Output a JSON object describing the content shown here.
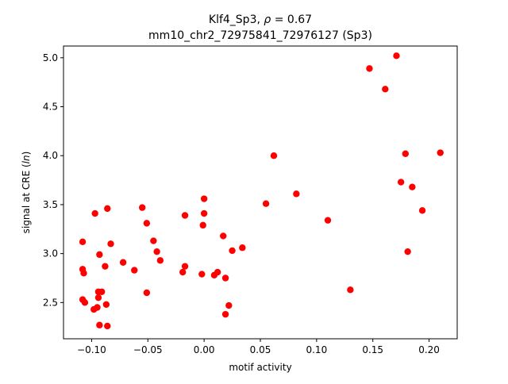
{
  "chart_data": {
    "type": "scatter",
    "title_line1": "Klf4_Sp3, ",
    "title_rho_symbol": "ρ",
    "title_rho_value": " = 0.67",
    "title_line2": "mm10_chr2_72975841_72976127 (Sp3)",
    "xlabel": "motif activity",
    "ylabel_prefix": "signal at CRE (",
    "ylabel_italic": "ln",
    "ylabel_suffix": ")",
    "xlim": [
      -0.125,
      0.225
    ],
    "ylim": [
      2.13,
      5.12
    ],
    "xticks": [
      -0.1,
      -0.05,
      0.0,
      0.05,
      0.1,
      0.15,
      0.2
    ],
    "xtick_labels": [
      "−0.10",
      "−0.05",
      "0.00",
      "0.05",
      "0.10",
      "0.15",
      "0.20"
    ],
    "yticks": [
      2.5,
      3.0,
      3.5,
      4.0,
      4.5,
      5.0
    ],
    "ytick_labels": [
      "2.5",
      "3.0",
      "3.5",
      "4.0",
      "4.5",
      "5.0"
    ],
    "grid": false,
    "marker_color": "#ff0000",
    "points": [
      {
        "x": -0.108,
        "y": 3.12
      },
      {
        "x": -0.108,
        "y": 2.84
      },
      {
        "x": -0.107,
        "y": 2.8
      },
      {
        "x": -0.108,
        "y": 2.53
      },
      {
        "x": -0.106,
        "y": 2.5
      },
      {
        "x": -0.097,
        "y": 3.41
      },
      {
        "x": -0.098,
        "y": 2.43
      },
      {
        "x": -0.095,
        "y": 2.45
      },
      {
        "x": -0.094,
        "y": 2.61
      },
      {
        "x": -0.094,
        "y": 2.55
      },
      {
        "x": -0.093,
        "y": 2.99
      },
      {
        "x": -0.093,
        "y": 2.27
      },
      {
        "x": -0.091,
        "y": 2.61
      },
      {
        "x": -0.088,
        "y": 2.87
      },
      {
        "x": -0.087,
        "y": 2.48
      },
      {
        "x": -0.086,
        "y": 3.46
      },
      {
        "x": -0.086,
        "y": 2.26
      },
      {
        "x": -0.083,
        "y": 3.1
      },
      {
        "x": -0.072,
        "y": 2.91
      },
      {
        "x": -0.062,
        "y": 2.83
      },
      {
        "x": -0.055,
        "y": 3.47
      },
      {
        "x": -0.051,
        "y": 3.31
      },
      {
        "x": -0.051,
        "y": 2.6
      },
      {
        "x": -0.045,
        "y": 3.13
      },
      {
        "x": -0.042,
        "y": 3.02
      },
      {
        "x": -0.039,
        "y": 2.93
      },
      {
        "x": -0.019,
        "y": 2.81
      },
      {
        "x": -0.017,
        "y": 3.39
      },
      {
        "x": -0.017,
        "y": 2.87
      },
      {
        "x": -0.002,
        "y": 2.79
      },
      {
        "x": 0.0,
        "y": 3.56
      },
      {
        "x": 0.0,
        "y": 3.41
      },
      {
        "x": -0.001,
        "y": 3.29
      },
      {
        "x": 0.009,
        "y": 2.78
      },
      {
        "x": 0.012,
        "y": 2.81
      },
      {
        "x": 0.017,
        "y": 3.18
      },
      {
        "x": 0.019,
        "y": 2.75
      },
      {
        "x": 0.019,
        "y": 2.38
      },
      {
        "x": 0.022,
        "y": 2.47
      },
      {
        "x": 0.025,
        "y": 3.03
      },
      {
        "x": 0.034,
        "y": 3.06
      },
      {
        "x": 0.055,
        "y": 3.51
      },
      {
        "x": 0.062,
        "y": 4.0
      },
      {
        "x": 0.082,
        "y": 3.61
      },
      {
        "x": 0.11,
        "y": 3.34
      },
      {
        "x": 0.13,
        "y": 2.63
      },
      {
        "x": 0.147,
        "y": 4.89
      },
      {
        "x": 0.161,
        "y": 4.68
      },
      {
        "x": 0.171,
        "y": 5.02
      },
      {
        "x": 0.175,
        "y": 3.73
      },
      {
        "x": 0.179,
        "y": 4.02
      },
      {
        "x": 0.181,
        "y": 3.02
      },
      {
        "x": 0.185,
        "y": 3.68
      },
      {
        "x": 0.194,
        "y": 3.44
      },
      {
        "x": 0.21,
        "y": 4.03
      }
    ]
  }
}
